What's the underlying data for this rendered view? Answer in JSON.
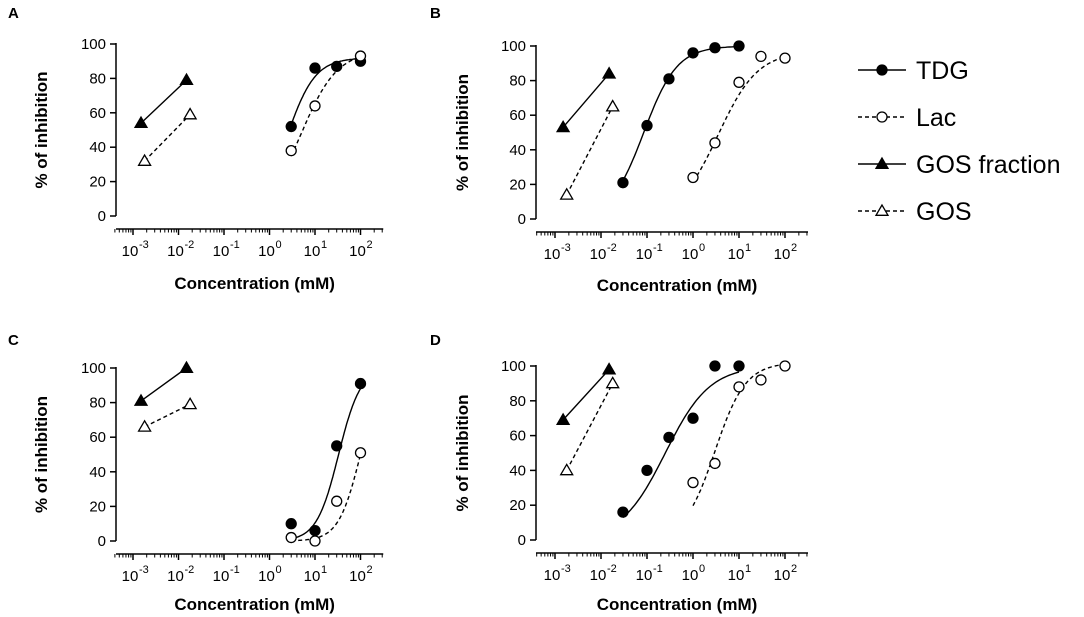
{
  "figure": {
    "legend": [
      {
        "label": "TDG",
        "series": "TDG"
      },
      {
        "label": "Lac",
        "series": "Lac"
      },
      {
        "label": "GOS fraction",
        "series": "GOS fraction"
      },
      {
        "label": "GOS",
        "series": "GOS"
      }
    ],
    "styles": {
      "TDG": {
        "marker": "circle",
        "filled": true,
        "dashed": false
      },
      "Lac": {
        "marker": "circle",
        "filled": false,
        "dashed": true
      },
      "GOS fraction": {
        "marker": "triangle",
        "filled": true,
        "dashed": false
      },
      "GOS": {
        "marker": "triangle",
        "filled": false,
        "dashed": true
      }
    },
    "colors": {
      "ink": "#000000",
      "background": "#ffffff"
    }
  },
  "chart_data": [
    {
      "panel": "A",
      "type": "scatter",
      "xlabel": "Concentration (mM)",
      "ylabel": "% of inhibition",
      "xscale": "log",
      "xlim_exp": [
        -3.5,
        2.5
      ],
      "ylim": [
        0,
        100
      ],
      "yticks": [
        0,
        20,
        40,
        60,
        80,
        100
      ],
      "xtick_exps": [
        -3,
        -2,
        -1,
        0,
        1,
        2
      ],
      "series": [
        {
          "name": "TDG",
          "x": [
            3,
            10,
            30,
            100
          ],
          "y": [
            52,
            86,
            87,
            90
          ],
          "curve": {
            "top": 92,
            "ec50": 2.4,
            "hill": 1.4,
            "from": 3,
            "to": 100
          }
        },
        {
          "name": "Lac",
          "x": [
            3,
            10,
            100
          ],
          "y": [
            38,
            64,
            93
          ],
          "curve": {
            "top": 96,
            "ec50": 5,
            "hill": 1.1,
            "from": 3,
            "to": 100
          }
        },
        {
          "name": "GOS fraction",
          "x": [
            0.0015,
            0.015
          ],
          "y": [
            54,
            79
          ]
        },
        {
          "name": "GOS",
          "x": [
            0.0018,
            0.018
          ],
          "y": [
            32,
            59
          ]
        }
      ]
    },
    {
      "panel": "B",
      "type": "scatter",
      "xlabel": "Concentration (mM)",
      "ylabel": "% of inhibition",
      "xscale": "log",
      "xlim_exp": [
        -3.5,
        2.5
      ],
      "ylim": [
        0,
        100
      ],
      "yticks": [
        0,
        20,
        40,
        60,
        80,
        100
      ],
      "xtick_exps": [
        -3,
        -2,
        -1,
        0,
        1,
        2
      ],
      "series": [
        {
          "name": "TDG",
          "x": [
            0.03,
            0.1,
            0.3,
            1,
            3,
            10
          ],
          "y": [
            21,
            54,
            81,
            96,
            99,
            100
          ],
          "curve": {
            "top": 100,
            "ec50": 0.085,
            "hill": 1.2,
            "from": 0.03,
            "to": 10
          }
        },
        {
          "name": "Lac",
          "x": [
            1,
            3,
            10,
            30,
            100
          ],
          "y": [
            24,
            44,
            79,
            94,
            93
          ],
          "curve": {
            "top": 97,
            "ec50": 3.5,
            "hill": 1.0,
            "from": 1,
            "to": 100
          }
        },
        {
          "name": "GOS fraction",
          "x": [
            0.0015,
            0.015
          ],
          "y": [
            53,
            84
          ]
        },
        {
          "name": "GOS",
          "x": [
            0.0018,
            0.018
          ],
          "y": [
            14,
            65
          ]
        }
      ]
    },
    {
      "panel": "C",
      "type": "scatter",
      "xlabel": "Concentration (mM)",
      "ylabel": "% of inhibition",
      "xscale": "log",
      "xlim_exp": [
        -3.5,
        2.5
      ],
      "ylim": [
        0,
        100
      ],
      "yticks": [
        0,
        20,
        40,
        60,
        80,
        100
      ],
      "xtick_exps": [
        -3,
        -2,
        -1,
        0,
        1,
        2
      ],
      "series": [
        {
          "name": "TDG",
          "x": [
            3,
            10,
            30,
            100
          ],
          "y": [
            10,
            6,
            55,
            91
          ],
          "curve": {
            "top": 100,
            "ec50": 33,
            "hill": 1.8,
            "from": 3,
            "to": 100
          }
        },
        {
          "name": "Lac",
          "x": [
            3,
            10,
            30,
            100
          ],
          "y": [
            2,
            0,
            23,
            51
          ],
          "curve": {
            "top": 100,
            "ec50": 100,
            "hill": 1.8,
            "from": 3,
            "to": 100
          }
        },
        {
          "name": "GOS fraction",
          "x": [
            0.0015,
            0.015
          ],
          "y": [
            81,
            100
          ]
        },
        {
          "name": "GOS",
          "x": [
            0.0018,
            0.018
          ],
          "y": [
            66,
            79
          ]
        }
      ]
    },
    {
      "panel": "D",
      "type": "scatter",
      "xlabel": "Concentration (mM)",
      "ylabel": "% of inhibition",
      "xscale": "log",
      "xlim_exp": [
        -3.5,
        2.5
      ],
      "ylim": [
        0,
        100
      ],
      "yticks": [
        0,
        20,
        40,
        60,
        80,
        100
      ],
      "xtick_exps": [
        -3,
        -2,
        -1,
        0,
        1,
        2
      ],
      "series": [
        {
          "name": "TDG",
          "x": [
            0.03,
            0.1,
            0.3,
            1,
            3,
            10
          ],
          "y": [
            16,
            40,
            59,
            70,
            100,
            100
          ],
          "curve": {
            "top": 100,
            "ec50": 0.25,
            "hill": 0.9,
            "from": 0.03,
            "to": 10
          }
        },
        {
          "name": "Lac",
          "x": [
            1,
            3,
            10,
            30,
            100
          ],
          "y": [
            33,
            44,
            88,
            92,
            100
          ],
          "curve": {
            "top": 102,
            "ec50": 3,
            "hill": 1.3,
            "from": 1,
            "to": 100
          }
        },
        {
          "name": "GOS fraction",
          "x": [
            0.0015,
            0.015
          ],
          "y": [
            69,
            98
          ]
        },
        {
          "name": "GOS",
          "x": [
            0.0018,
            0.018
          ],
          "y": [
            40,
            90
          ]
        }
      ]
    }
  ]
}
